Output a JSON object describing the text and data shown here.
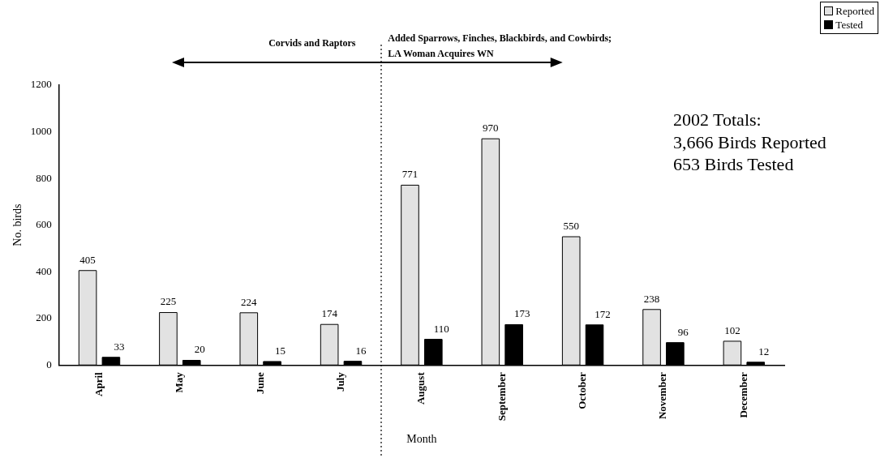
{
  "chart_data": {
    "type": "bar",
    "xlabel": "Month",
    "ylabel": "No. birds",
    "categories": [
      "April",
      "May",
      "June",
      "July",
      "August",
      "September",
      "October",
      "November",
      "December"
    ],
    "series": [
      {
        "name": "Reported",
        "color": "#e2e2e2",
        "values": [
          405,
          225,
          224,
          174,
          771,
          970,
          550,
          238,
          102
        ]
      },
      {
        "name": "Tested",
        "color": "#000000",
        "values": [
          33,
          20,
          15,
          16,
          110,
          173,
          172,
          96,
          12
        ]
      }
    ],
    "ylim": [
      0,
      1200
    ],
    "yticks": [
      0,
      200,
      400,
      600,
      800,
      1000,
      1200
    ],
    "grid": false,
    "legend": "top right",
    "data_labels": true,
    "annotations": [
      "Corvids and Raptors",
      "Added Sparrows, Finches, Blackbirds, and Cowbirds;\nLA Woman Acquires WN",
      "2002 Totals:\n3,666 Birds Reported\n653 Birds Tested"
    ]
  }
}
